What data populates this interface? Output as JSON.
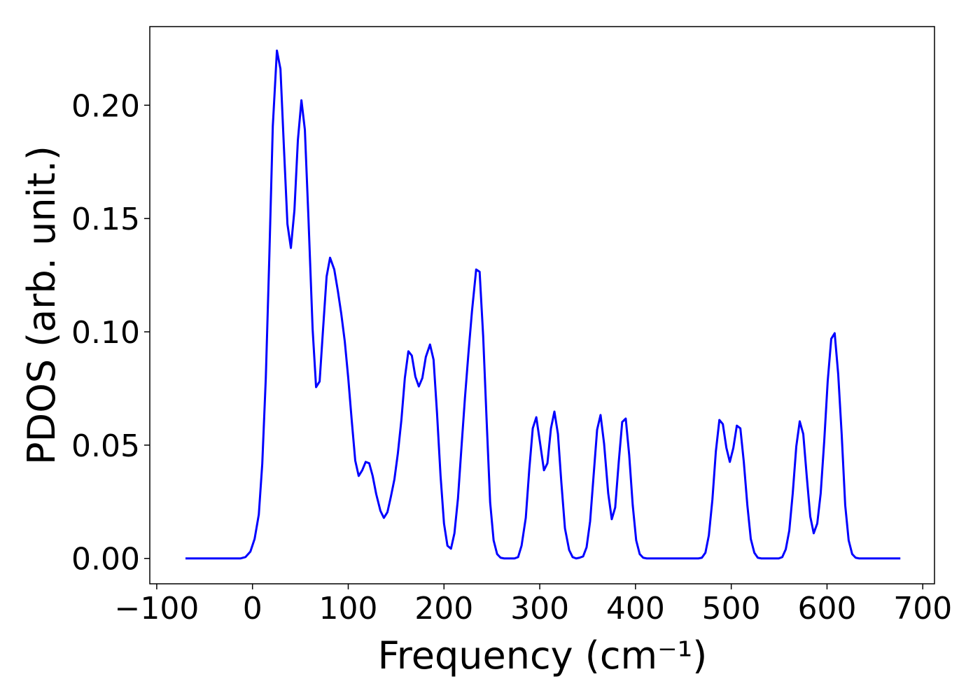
{
  "chart_data": {
    "type": "line",
    "xlabel": "Frequency (cm⁻¹)",
    "ylabel": "PDOS (arb. unit.)",
    "color": "#0000ff",
    "xlim": [
      -107.25,
      712.25
    ],
    "ylim": [
      -0.0112,
      0.2347
    ],
    "xticks": [
      {
        "value": -100,
        "label": "−100"
      },
      0,
      100,
      200,
      300,
      400,
      500,
      600,
      700
    ],
    "yticks": [
      {
        "value": 0,
        "label": "0.00"
      },
      {
        "value": 0.05,
        "label": "0.05"
      },
      {
        "value": 0.1,
        "label": "0.10"
      },
      {
        "value": 0.15,
        "label": "0.15"
      },
      {
        "value": 0.2,
        "label": "0.20"
      }
    ],
    "x": [
      -70,
      -12.4,
      -7.3,
      -2.2,
      2.2,
      6.6,
      10.2,
      13.9,
      17.5,
      21.2,
      25.5,
      29.2,
      32.8,
      36.5,
      40.1,
      43.8,
      47.4,
      51.1,
      54.7,
      58.4,
      62.8,
      66.4,
      70.1,
      73.7,
      77.4,
      81.0,
      85.4,
      89.1,
      92.7,
      96.4,
      100,
      103.6,
      107.3,
      110.9,
      114.6,
      118.2,
      121.9,
      125.5,
      129.2,
      133.6,
      137.2,
      140.9,
      144.5,
      148.2,
      151.8,
      155.5,
      159.1,
      162.8,
      166.4,
      170.1,
      173.7,
      177.4,
      181,
      185.4,
      189.1,
      192.7,
      196.4,
      200,
      203.6,
      207.3,
      210.9,
      214.6,
      218.2,
      221.9,
      225.5,
      229.2,
      233.6,
      237.2,
      240.9,
      244.5,
      248.2,
      251.8,
      255.5,
      259.1,
      262.8,
      273.7,
      277.4,
      281,
      285.4,
      289.1,
      292.7,
      296.4,
      300,
      304.4,
      308,
      311.7,
      315.3,
      319,
      322.6,
      326.3,
      330.7,
      334.3,
      338,
      341.6,
      345.3,
      348.9,
      352.6,
      356.2,
      359.9,
      363.5,
      367.2,
      371.5,
      375.2,
      378.8,
      382.5,
      386.1,
      389.8,
      393.4,
      397.1,
      400.7,
      404.4,
      408,
      411.7,
      465.7,
      469.3,
      473,
      476.6,
      480.3,
      483.9,
      487.6,
      491.2,
      494.9,
      498.5,
      502.2,
      505.8,
      509.5,
      513.1,
      516.8,
      520.4,
      524.1,
      527.7,
      531.4,
      549.6,
      553.3,
      556.9,
      560.6,
      564.2,
      567.9,
      571.5,
      575.2,
      578.8,
      582.5,
      586.1,
      589.8,
      593.4,
      597.1,
      600.7,
      604.4,
      608,
      611.7,
      615.3,
      619,
      622.6,
      626.3,
      629.9,
      633.6,
      676.6
    ],
    "values": [
      0,
      0,
      0.0006,
      0.003,
      0.0086,
      0.0194,
      0.0417,
      0.0796,
      0.132,
      0.1907,
      0.2241,
      0.216,
      0.1815,
      0.1475,
      0.137,
      0.1537,
      0.1846,
      0.2022,
      0.1892,
      0.1506,
      0.1012,
      0.0756,
      0.0781,
      0.1012,
      0.1244,
      0.1327,
      0.1275,
      0.1182,
      0.108,
      0.0957,
      0.0796,
      0.0611,
      0.0432,
      0.0364,
      0.0389,
      0.0426,
      0.042,
      0.0364,
      0.0284,
      0.021,
      0.0179,
      0.0204,
      0.0272,
      0.0349,
      0.0463,
      0.0611,
      0.0796,
      0.0914,
      0.0895,
      0.0802,
      0.0759,
      0.0796,
      0.0889,
      0.0944,
      0.0877,
      0.0642,
      0.0364,
      0.0154,
      0.0056,
      0.0043,
      0.0111,
      0.0265,
      0.0488,
      0.071,
      0.0904,
      0.109,
      0.1275,
      0.1265,
      0.0981,
      0.0611,
      0.0247,
      0.008,
      0.0019,
      0.0003,
      0,
      0,
      0.0006,
      0.0056,
      0.0179,
      0.0395,
      0.0574,
      0.0623,
      0.0519,
      0.0389,
      0.042,
      0.0574,
      0.0648,
      0.0549,
      0.0333,
      0.0133,
      0.0037,
      0.0006,
      0,
      0.0003,
      0.0009,
      0.0049,
      0.0164,
      0.0364,
      0.0568,
      0.0633,
      0.0506,
      0.0287,
      0.0173,
      0.0225,
      0.0426,
      0.0602,
      0.0617,
      0.0457,
      0.0235,
      0.008,
      0.0019,
      0.0003,
      0,
      0,
      0.0003,
      0.0025,
      0.0102,
      0.0259,
      0.0472,
      0.0611,
      0.0593,
      0.0488,
      0.0426,
      0.0488,
      0.0586,
      0.0574,
      0.0426,
      0.0235,
      0.0086,
      0.0025,
      0.0003,
      0,
      0,
      0.0006,
      0.004,
      0.0123,
      0.0287,
      0.0494,
      0.0605,
      0.0549,
      0.0364,
      0.0185,
      0.0111,
      0.0154,
      0.0287,
      0.0519,
      0.0781,
      0.0969,
      0.0994,
      0.0812,
      0.0549,
      0.0235,
      0.008,
      0.0019,
      0.0003,
      0,
      0
    ]
  }
}
